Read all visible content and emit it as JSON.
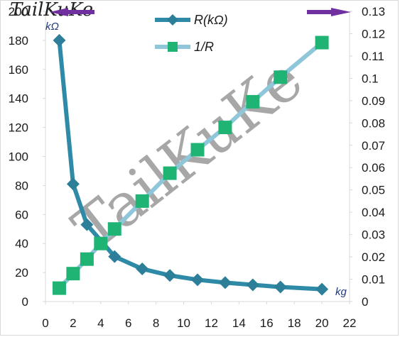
{
  "watermark": {
    "text": "TailKuKe"
  },
  "colors": {
    "resistance": "#2e8aa6",
    "resistance_marker": "#2d7f99",
    "reciprocal_line": "#8fc6d9",
    "reciprocal_marker": "#1fb374",
    "arrow": "#7030a0",
    "grid": "#d9d9d9"
  },
  "chart_data": {
    "type": "line",
    "xlabel": "kg",
    "ylabel": "kΩ",
    "xlim": [
      0,
      22
    ],
    "xticks": [
      "0",
      "2",
      "4",
      "6",
      "8",
      "10",
      "12",
      "14",
      "16",
      "18",
      "20",
      "22"
    ],
    "ylim_left": [
      0,
      200
    ],
    "yticks_left": [
      "0",
      "20",
      "40",
      "60",
      "80",
      "100",
      "120",
      "140",
      "160",
      "180",
      "200"
    ],
    "ylim_right": [
      0,
      0.13
    ],
    "yticks_right": [
      "0",
      "0.01",
      "0.02",
      "0.03",
      "0.04",
      "0.05",
      "0.06",
      "0.07",
      "0.08",
      "0.09",
      "0.1",
      "0.11",
      "0.12",
      "0.13"
    ],
    "grid": false,
    "legend_position": "top",
    "series": [
      {
        "name": "R(kΩ)",
        "axis": "left",
        "marker": "diamond",
        "x": [
          1,
          2,
          3,
          5,
          7,
          9,
          11,
          13,
          15,
          17,
          20
        ],
        "y": [
          180,
          81,
          53,
          31,
          22.5,
          18,
          15,
          13,
          11.5,
          10,
          8.5
        ]
      },
      {
        "name": "1/R",
        "axis": "right",
        "marker": "square",
        "x": [
          1,
          2,
          3,
          4,
          5,
          7,
          9,
          11,
          13,
          15,
          17,
          20
        ],
        "y": [
          0.006,
          0.0125,
          0.019,
          0.026,
          0.0325,
          0.045,
          0.0575,
          0.068,
          0.078,
          0.0895,
          0.1005,
          0.116
        ]
      }
    ]
  }
}
